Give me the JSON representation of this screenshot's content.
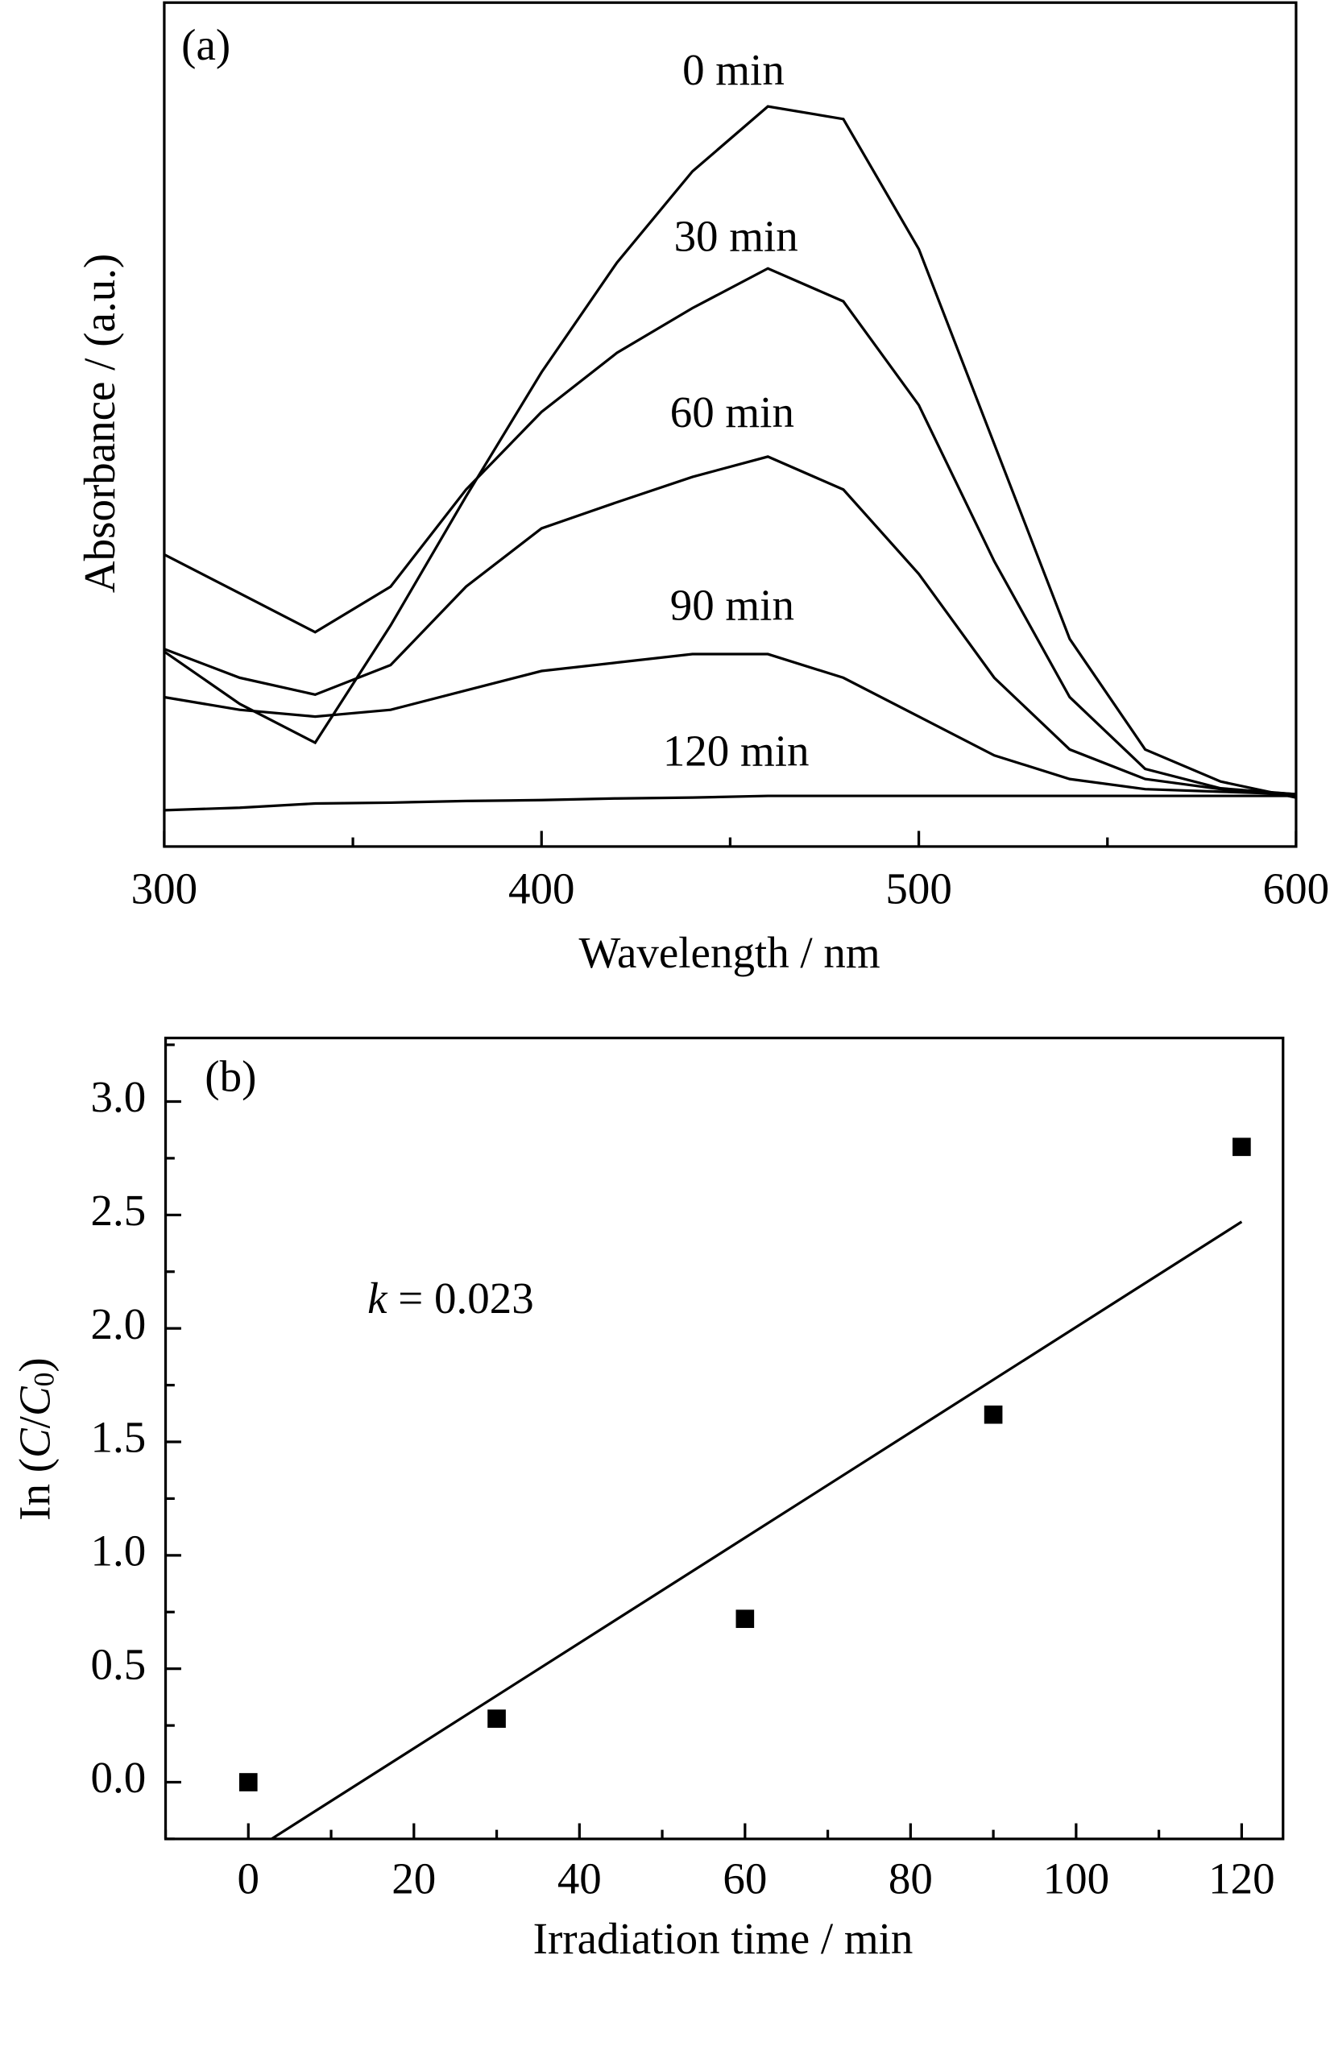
{
  "chart_data": [
    {
      "type": "line",
      "panel_label": "(a)",
      "xlabel": "Wavelength / nm",
      "ylabel": "Absorbance / (a.u.)",
      "x": [
        300,
        320,
        340,
        360,
        380,
        400,
        420,
        440,
        460,
        480,
        500,
        520,
        540,
        560,
        580,
        600
      ],
      "series": [
        {
          "name": "0 min",
          "color": "#000000",
          "values": [
            0.231,
            0.169,
            0.123,
            0.262,
            0.415,
            0.562,
            0.692,
            0.8,
            0.877,
            0.862,
            0.708,
            0.477,
            0.246,
            0.115,
            0.077,
            0.058
          ]
        },
        {
          "name": "30 min",
          "color": "#000000",
          "values": [
            0.346,
            0.3,
            0.254,
            0.308,
            0.423,
            0.515,
            0.585,
            0.638,
            0.685,
            0.646,
            0.523,
            0.338,
            0.177,
            0.092,
            0.069,
            0.062
          ]
        },
        {
          "name": "60 min",
          "color": "#000000",
          "values": [
            0.234,
            0.2,
            0.18,
            0.215,
            0.308,
            0.377,
            0.408,
            0.438,
            0.462,
            0.423,
            0.323,
            0.2,
            0.115,
            0.08,
            0.068,
            0.062
          ]
        },
        {
          "name": "90 min",
          "color": "#000000",
          "values": [
            0.177,
            0.162,
            0.154,
            0.162,
            0.185,
            0.208,
            0.218,
            0.228,
            0.228,
            0.2,
            0.154,
            0.108,
            0.08,
            0.068,
            0.065,
            0.062
          ]
        },
        {
          "name": "120 min",
          "color": "#000000",
          "values": [
            0.043,
            0.046,
            0.051,
            0.052,
            0.054,
            0.055,
            0.057,
            0.058,
            0.06,
            0.06,
            0.06,
            0.06,
            0.06,
            0.06,
            0.06,
            0.06
          ]
        }
      ],
      "xlim": [
        300,
        600
      ],
      "ylim": [
        0,
        1
      ],
      "xticks": [
        300,
        400,
        500,
        600
      ],
      "xminorticks": [
        350,
        450,
        550
      ]
    },
    {
      "type": "scatter",
      "panel_label": "(b)",
      "xlabel": "Irradiation time / min",
      "ylabel": "In (C/C0)",
      "annotation": "k = 0.023",
      "x": [
        0,
        30,
        60,
        90,
        120
      ],
      "values": [
        0,
        0.28,
        0.72,
        1.62,
        2.8
      ],
      "color": "#000000",
      "fit_line": {
        "x": [
          2.8,
          120
        ],
        "values": [
          -0.25,
          2.47
        ]
      },
      "xlim": [
        -10,
        125
      ],
      "ylim": [
        -0.25,
        3.28
      ],
      "xticks": [
        0,
        20,
        40,
        60,
        80,
        100,
        120
      ],
      "yticks": [
        {
          "value": 0,
          "label": "0.0"
        },
        {
          "value": 0.5,
          "label": "0.5"
        },
        {
          "value": 1,
          "label": "1.0"
        },
        {
          "value": 1.5,
          "label": "1.5"
        },
        {
          "value": 2,
          "label": "2.0"
        },
        {
          "value": 2.5,
          "label": "2.5"
        },
        {
          "value": 3,
          "label": "3.0"
        }
      ],
      "xminorticks": [
        -10,
        10,
        30,
        50,
        70,
        90,
        110
      ],
      "yminorticks": [
        -0.25,
        0.25,
        0.75,
        1.25,
        1.75,
        2.25,
        2.75,
        3.25
      ]
    }
  ]
}
